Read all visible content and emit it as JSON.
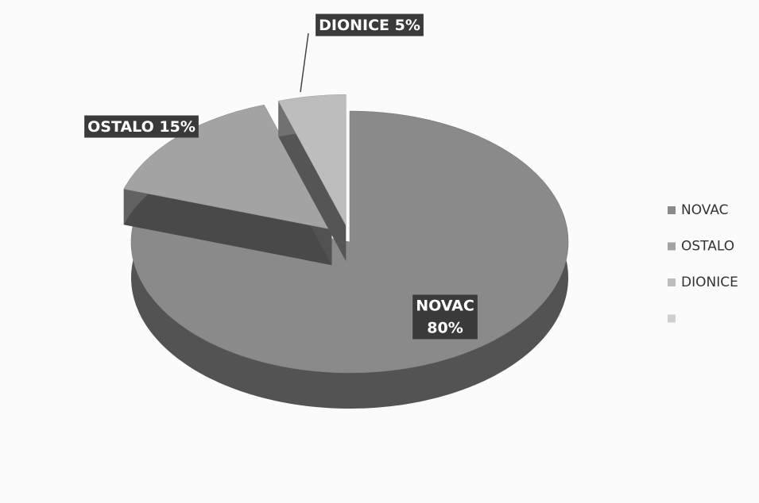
{
  "chart_data": {
    "type": "pie",
    "categories": [
      "NOVAC",
      "OSTALO",
      "DIONICE",
      null
    ],
    "values": [
      80,
      15,
      5,
      null
    ],
    "value_labels": [
      "80%",
      "15%",
      "5%",
      null
    ],
    "colors": [
      "#8a8a8a",
      "#a3a3a3",
      "#bdbdbd",
      "#cfcfcf"
    ],
    "legend": "right"
  }
}
